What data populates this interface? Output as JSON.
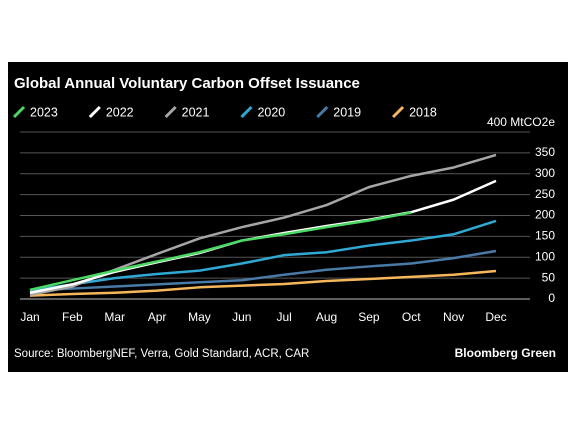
{
  "chart_data": {
    "type": "line",
    "title": "Global Annual Voluntary Carbon Offset Issuance",
    "source": "Source: BloombergNEF, Verra, Gold Standard, ACR, CAR",
    "brand": "Bloomberg Green",
    "categories": [
      "Jan",
      "Feb",
      "Mar",
      "Apr",
      "May",
      "Jun",
      "Jul",
      "Aug",
      "Sep",
      "Oct",
      "Nov",
      "Dec"
    ],
    "series": [
      {
        "name": "2023",
        "color": "#4cd964",
        "values": [
          22,
          45,
          68,
          90,
          112,
          140,
          155,
          172,
          188,
          207,
          null,
          null
        ]
      },
      {
        "name": "2022",
        "color": "#ffffff",
        "values": [
          15,
          35,
          65,
          88,
          110,
          140,
          158,
          175,
          190,
          208,
          238,
          283
        ]
      },
      {
        "name": "2021",
        "color": "#a6a6a6",
        "values": [
          10,
          30,
          70,
          108,
          145,
          172,
          195,
          225,
          268,
          295,
          315,
          345
        ]
      },
      {
        "name": "2020",
        "color": "#2fa9d4",
        "values": [
          20,
          35,
          50,
          60,
          68,
          85,
          105,
          112,
          128,
          140,
          155,
          187
        ]
      },
      {
        "name": "2019",
        "color": "#4a7aa6",
        "values": [
          20,
          25,
          30,
          35,
          40,
          45,
          58,
          70,
          78,
          85,
          98,
          115
        ]
      },
      {
        "name": "2018",
        "color": "#f5b75a",
        "values": [
          8,
          12,
          15,
          20,
          28,
          32,
          36,
          43,
          48,
          53,
          58,
          67
        ]
      }
    ],
    "ylim": [
      0,
      400
    ],
    "yticks": [
      0,
      50,
      100,
      150,
      200,
      250,
      300,
      350,
      {
        "value": 400,
        "label": "400 MtCO2e"
      }
    ],
    "grid": true
  }
}
